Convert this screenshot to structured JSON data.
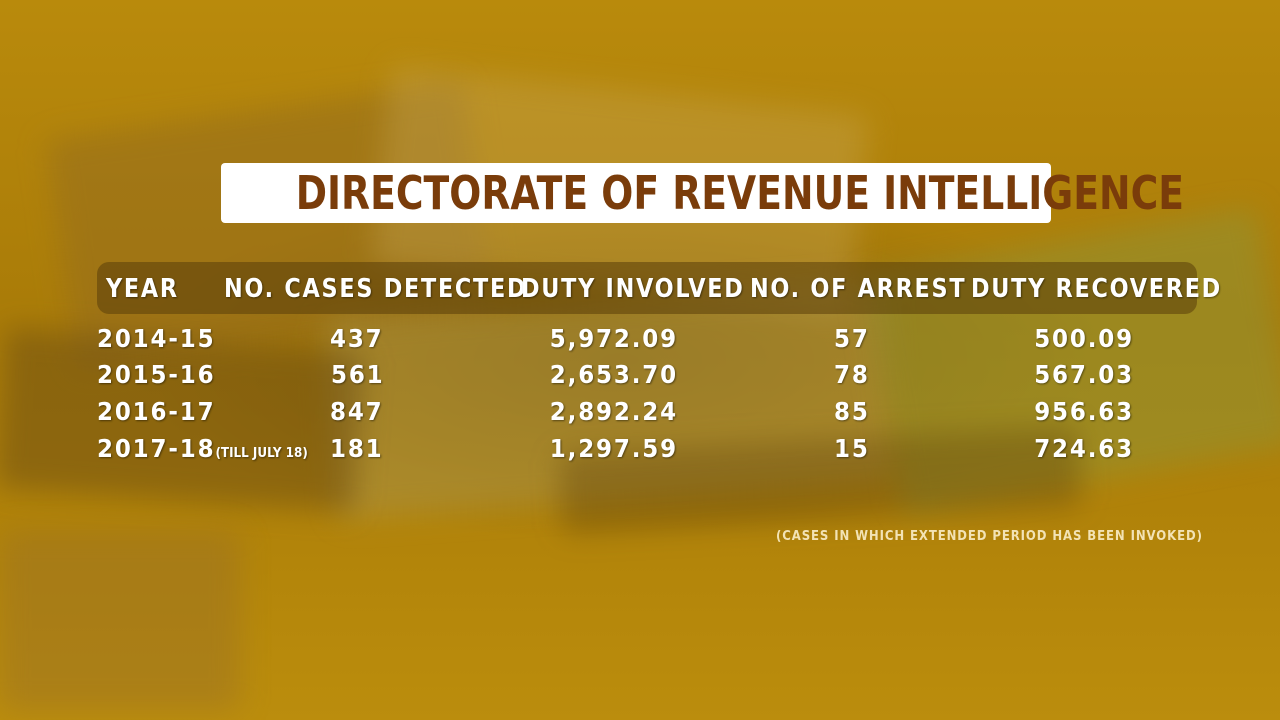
{
  "title": "DIRECTORATE OF REVENUE INTELLIGENCE",
  "note": "(CASES IN WHICH EXTENDED PERIOD HAS BEEN INVOKED)",
  "colors": {
    "background": "#b8860a",
    "title_text": "#7a3c0a",
    "title_box": "#ffffff",
    "table_text": "#ffffff"
  },
  "chart_data": {
    "type": "table",
    "title": "DIRECTORATE OF REVENUE INTELLIGENCE",
    "columns": [
      "YEAR",
      "NO. CASES DETECTED",
      "DUTY INVOLVED",
      "NO. OF ARREST",
      "DUTY RECOVERED"
    ],
    "rows": [
      {
        "year": "2014-15",
        "year_note": "",
        "cases": "437",
        "duty_involved": "5,972.09",
        "arrests": "57",
        "duty_recovered": "500.09"
      },
      {
        "year": "2015-16",
        "year_note": "",
        "cases": "561",
        "duty_involved": "2,653.70",
        "arrests": "78",
        "duty_recovered": "567.03"
      },
      {
        "year": "2016-17",
        "year_note": "",
        "cases": "847",
        "duty_involved": "2,892.24",
        "arrests": "85",
        "duty_recovered": "956.63"
      },
      {
        "year": "2017-18",
        "year_note": "(TILL JULY 18)",
        "cases": "181",
        "duty_involved": "1,297.59",
        "arrests": "15",
        "duty_recovered": "724.63"
      }
    ],
    "annotations": [
      "(CASES IN WHICH EXTENDED PERIOD HAS BEEN INVOKED)"
    ]
  }
}
